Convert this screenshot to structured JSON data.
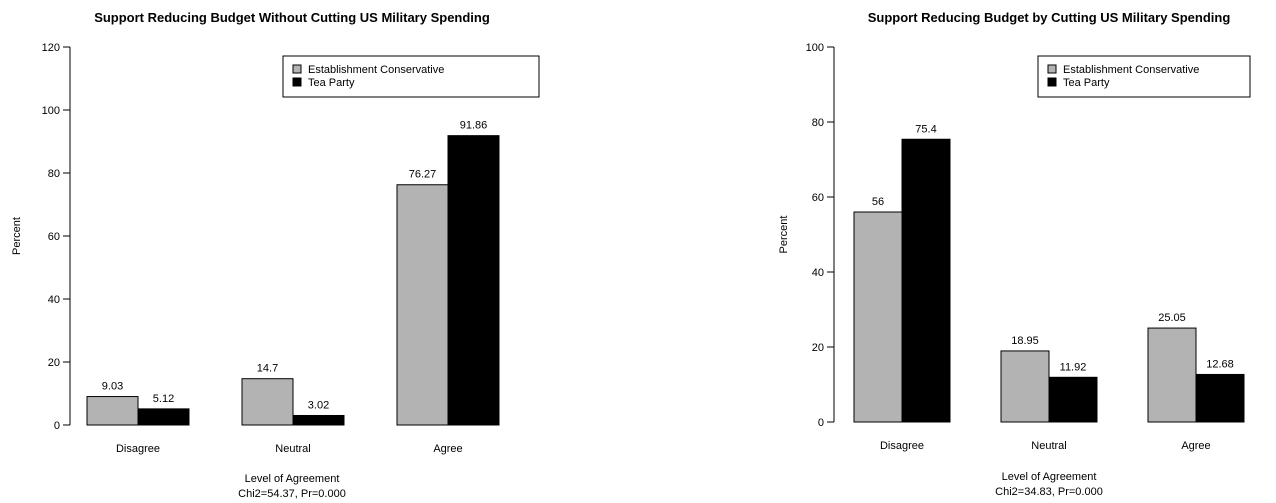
{
  "chart_data": [
    {
      "type": "bar",
      "title": "Support Reducing Budget Without Cutting US Military Spending",
      "xlabel": "Level of Agreement",
      "xlabel_note": "Chi2=54.37, Pr=0.000",
      "ylabel": "Percent",
      "ylim": [
        0,
        120
      ],
      "yticks": [
        0,
        20,
        40,
        60,
        80,
        100,
        120
      ],
      "categories": [
        "Disagree",
        "Neutral",
        "Agree"
      ],
      "legend_position": "top-right",
      "series": [
        {
          "name": "Establishment Conservative",
          "color": "#b3b3b3",
          "values": [
            9.03,
            14.7,
            76.27
          ],
          "labels": [
            "9.03",
            "14.7",
            "76.27"
          ]
        },
        {
          "name": "Tea Party",
          "color": "#000000",
          "values": [
            5.12,
            3.02,
            91.86
          ],
          "labels": [
            "5.12",
            "3.02",
            "91.86"
          ]
        }
      ]
    },
    {
      "type": "bar",
      "title": "Support Reducing Budget by Cutting US Military Spending",
      "xlabel": "Level of Agreement",
      "xlabel_note": "Chi2=34.83, Pr=0.000",
      "ylabel": "Percent",
      "ylim": [
        0,
        100
      ],
      "yticks": [
        0,
        20,
        40,
        60,
        80,
        100
      ],
      "categories": [
        "Disagree",
        "Neutral",
        "Agree"
      ],
      "legend_position": "top-right",
      "series": [
        {
          "name": "Establishment Conservative",
          "color": "#b3b3b3",
          "values": [
            56,
            18.95,
            25.05
          ],
          "labels": [
            "56",
            "18.95",
            "25.05"
          ]
        },
        {
          "name": "Tea Party",
          "color": "#000000",
          "values": [
            75.4,
            11.92,
            12.68
          ],
          "labels": [
            "75.4",
            "11.92",
            "12.68"
          ]
        }
      ]
    }
  ]
}
